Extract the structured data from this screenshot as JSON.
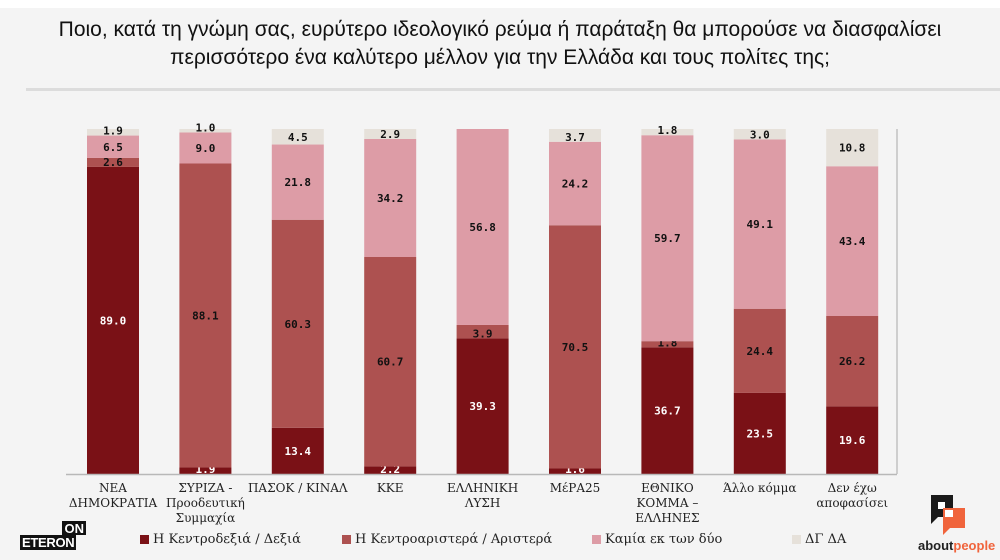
{
  "title": {
    "line1": "Ποιο, κατά τη γνώμη σας, ευρύτερο ιδεολογικό ρεύμα ή παράταξη θα μπορούσε να διασφαλίσει",
    "line2": "περισσότερο ένα καλύτερο μέλλον για την Ελλάδα και τους πολίτες της;"
  },
  "chart_data": {
    "type": "bar",
    "stacked": true,
    "title": "Ποιο, κατά τη γνώμη σας, ευρύτερο ιδεολογικό ρεύμα ή παράταξη θα μπορούσε να διασφαλίσει περισσότερο ένα καλύτερο μέλλον για την Ελλάδα και τους πολίτες της;",
    "xlabel": "",
    "ylabel": "",
    "ylim": [
      0,
      100
    ],
    "grid": false,
    "legend_position": "bottom",
    "categories": [
      [
        "ΝΕΑ",
        "ΔΗΜΟΚΡΑΤΙΑ"
      ],
      [
        "ΣΥΡΙΖΑ -",
        "Προοδευτική",
        "Συμμαχία"
      ],
      [
        "ΠΑΣΟΚ / ΚΙΝΑΛ"
      ],
      [
        "ΚΚΕ"
      ],
      [
        "ΕΛΛΗΝΙΚΗ",
        "ΛΥΣΗ"
      ],
      [
        "ΜέΡΑ25"
      ],
      [
        "ΕΘΝΙΚΟ",
        "ΚΟΜΜΑ –",
        "ΕΛΛΗΝΕΣ"
      ],
      [
        "Άλλο κόμμα"
      ],
      [
        "Δεν έχω",
        "αποφασίσει"
      ]
    ],
    "series": [
      {
        "name": "Η Κεντροδεξιά / Δεξιά",
        "color": "#7a1116",
        "label_color": "#ffffff",
        "values": [
          89.0,
          1.9,
          13.4,
          2.2,
          39.3,
          1.6,
          36.7,
          23.5,
          19.6
        ],
        "labels": [
          "89.0",
          "1.9",
          "13.4",
          "2.2",
          "39.3",
          "1.6",
          "36.7",
          "23.5",
          "19.6"
        ]
      },
      {
        "name": "Η Κεντροαριστερά / Αριστερά",
        "color": "#ad5150",
        "label_color": "#111111",
        "values": [
          2.6,
          88.1,
          60.3,
          60.7,
          3.9,
          70.5,
          1.8,
          24.4,
          26.2
        ],
        "labels": [
          "2.6",
          "88.1",
          "60.3",
          "60.7",
          "3.9",
          "70.5",
          "1.8",
          "24.4",
          "26.2"
        ]
      },
      {
        "name": "Καμία εκ των δύο",
        "color": "#dd9ca6",
        "label_color": "#111111",
        "values": [
          6.5,
          9.0,
          21.8,
          34.2,
          56.8,
          24.2,
          59.7,
          49.1,
          43.4
        ],
        "labels": [
          "6.5",
          "9.0",
          "21.8",
          "34.2",
          "56.8",
          "24.2",
          "59.7",
          "49.1",
          "43.4"
        ]
      },
      {
        "name": "ΔΓ ΔΑ",
        "color": "#e6e1da",
        "label_color": "#111111",
        "values": [
          1.9,
          1.0,
          4.5,
          2.9,
          0,
          3.7,
          1.8,
          3.0,
          10.8
        ],
        "labels": [
          "1.9",
          "1.0",
          "4.5",
          "2.9",
          "",
          "3.7",
          "1.8",
          "3.0",
          "10.8"
        ]
      }
    ]
  },
  "logos": {
    "left_line1": "ON",
    "left_line2": "ETERON",
    "right_about": "about",
    "right_people": "people"
  }
}
